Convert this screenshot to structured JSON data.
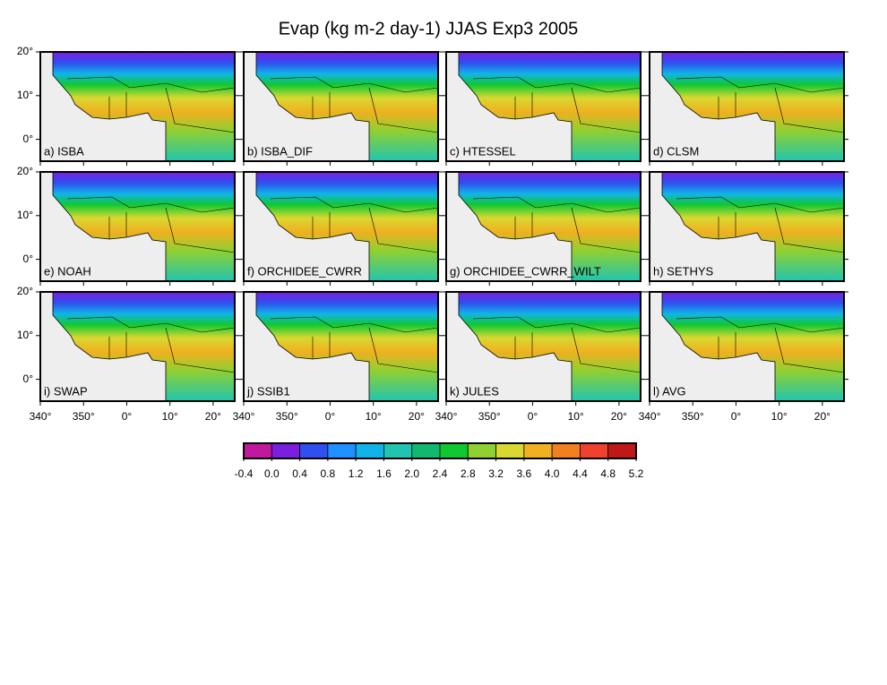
{
  "title": "Evap (kg m-2 day-1) JJAS Exp3 2005",
  "panels": [
    "a) ISBA",
    "b) ISBA_DIF",
    "c) HTESSEL",
    "d) CLSM",
    "e) NOAH",
    "f) ORCHIDEE_CWRR",
    "g) ORCHIDEE_CWRR_WILT",
    "h) SETHYS",
    "i) SWAP",
    "j) SSIB1",
    "k) JULES",
    "l) AVG"
  ],
  "lat_range": [
    -5,
    20
  ],
  "lat_ticks": [
    {
      "value": 20,
      "label": "20°"
    },
    {
      "value": 10,
      "label": "10°"
    },
    {
      "value": 0,
      "label": "0°"
    }
  ],
  "lon_range": [
    340,
    385
  ],
  "lon_ticks": [
    {
      "value": 340,
      "label": "340°"
    },
    {
      "value": 350,
      "label": "350°"
    },
    {
      "value": 360,
      "label": "0°"
    },
    {
      "value": 370,
      "label": "10°"
    },
    {
      "value": 380,
      "label": "20°"
    }
  ],
  "colorbar": {
    "levels": [
      -0.4,
      {
        "value": 0,
        "label": "0.0"
      },
      0.4,
      0.8,
      1.2,
      1.6,
      {
        "value": 2,
        "label": "2.0"
      },
      2.4,
      2.8,
      3.2,
      3.6,
      {
        "value": 4,
        "label": "4.0"
      },
      4.4,
      4.8,
      5.2
    ],
    "colors": [
      "#c0189f",
      "#7a1fe0",
      "#2f4ff0",
      "#1e90ff",
      "#10b4e8",
      "#20c4b0",
      "#10b870",
      "#10c830",
      "#90d030",
      "#d8d830",
      "#f0b020",
      "#f08020",
      "#f04030",
      "#c01818"
    ]
  }
}
